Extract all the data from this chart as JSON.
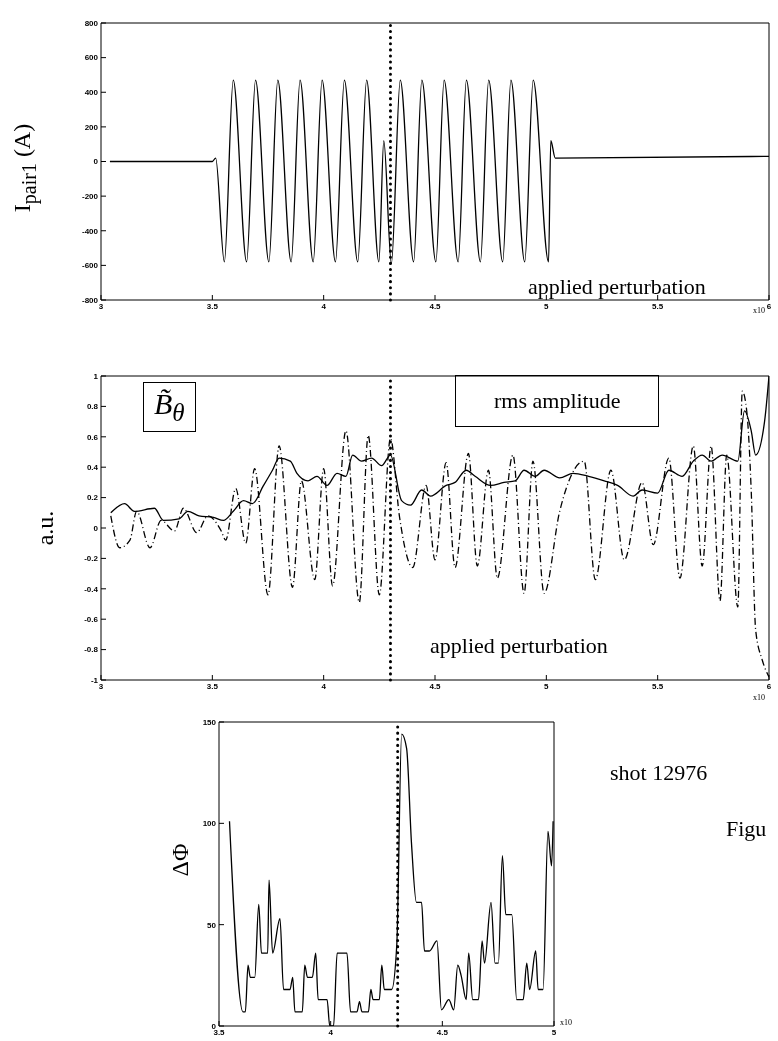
{
  "chart_data": [
    {
      "type": "line",
      "ylabel": "I$_{pair1}$ (A)",
      "annotations": [
        "applied perturbation",
        "x10"
      ],
      "xlim": [
        3,
        6
      ],
      "xticks": [
        3,
        3.5,
        4,
        4.5,
        5,
        5.5,
        6
      ],
      "ylim": [
        -800,
        800
      ],
      "yticks": [
        -800,
        -600,
        -400,
        -200,
        0,
        200,
        400,
        600,
        800
      ],
      "grid": false,
      "marker": "none",
      "line_style": "solid",
      "ref_lines": [
        {
          "axis": "x",
          "value": 4.3,
          "line_style": "dotted"
        }
      ],
      "series": [
        {
          "color": "#000000",
          "x": [
            3.04,
            3.5,
            3.515,
            3.554,
            3.594,
            3.654,
            3.694,
            3.754,
            3.794,
            3.854,
            3.894,
            3.953,
            3.993,
            4.053,
            4.093,
            4.153,
            4.193,
            4.248,
            4.27,
            4.304,
            4.344,
            4.404,
            4.441,
            4.504,
            4.541,
            4.604,
            4.641,
            4.704,
            4.741,
            4.804,
            4.841,
            4.903,
            4.941,
            5.01,
            5.02,
            5.04,
            6.0
          ],
          "values": [
            0,
            0,
            20,
            -580,
            470,
            -580,
            470,
            -580,
            470,
            -580,
            470,
            -580,
            470,
            -580,
            470,
            -580,
            470,
            -580,
            120,
            -590,
            470,
            -580,
            470,
            -580,
            470,
            -580,
            470,
            -580,
            470,
            -580,
            470,
            -580,
            470,
            -580,
            120,
            20,
            30
          ]
        }
      ]
    },
    {
      "type": "line",
      "ylabel": "a.u.",
      "annotations": [
        "B̃$_{θ}$",
        "applied perturbation",
        "x10"
      ],
      "xlim": [
        3,
        6
      ],
      "xticks": [
        3,
        3.5,
        4,
        4.5,
        5,
        5.5,
        6
      ],
      "ylim": [
        -1,
        1
      ],
      "yticks": [
        -1,
        -0.8,
        -0.6,
        -0.4,
        -0.2,
        0,
        0.2,
        0.4,
        0.6,
        0.8,
        1
      ],
      "grid": false,
      "marker": "none",
      "ref_lines": [
        {
          "axis": "x",
          "value": 4.3,
          "line_style": "dotted"
        }
      ],
      "series": [
        {
          "name": "rms amplitude",
          "color": "#000000",
          "line_style": "solid",
          "x": [
            3.044,
            3.106,
            3.15,
            3.24,
            3.28,
            3.35,
            3.39,
            3.44,
            3.505,
            3.55,
            3.594,
            3.64,
            3.68,
            3.73,
            3.77,
            3.8,
            3.85,
            3.88,
            3.93,
            3.97,
            4.015,
            4.06,
            4.1,
            4.13,
            4.17,
            4.215,
            4.26,
            4.3,
            4.35,
            4.39,
            4.44,
            4.48,
            4.55,
            4.59,
            4.64,
            4.68,
            4.75,
            4.81,
            4.86,
            4.9,
            4.95,
            4.99,
            5.06,
            5.12,
            5.19,
            5.26,
            5.32,
            5.39,
            5.43,
            5.5,
            5.55,
            5.61,
            5.66,
            5.7,
            5.74,
            5.79,
            5.86,
            5.89,
            5.92,
            5.94,
            5.98,
            6.0
          ],
          "values": [
            0.1,
            0.16,
            0.11,
            0.13,
            0.05,
            0.06,
            0.11,
            0.08,
            0.07,
            0.05,
            0.11,
            0.18,
            0.16,
            0.28,
            0.38,
            0.46,
            0.44,
            0.36,
            0.31,
            0.34,
            0.28,
            0.36,
            0.34,
            0.48,
            0.44,
            0.46,
            0.41,
            0.48,
            0.18,
            0.15,
            0.25,
            0.21,
            0.28,
            0.3,
            0.38,
            0.34,
            0.28,
            0.3,
            0.31,
            0.38,
            0.34,
            0.38,
            0.33,
            0.36,
            0.34,
            0.31,
            0.28,
            0.21,
            0.25,
            0.23,
            0.38,
            0.34,
            0.44,
            0.48,
            0.44,
            0.48,
            0.44,
            0.77,
            0.64,
            0.48,
            0.7,
            1.0
          ]
        },
        {
          "color": "#000000",
          "line_style": "dashed",
          "x": [
            3.044,
            3.084,
            3.13,
            3.16,
            3.22,
            3.27,
            3.33,
            3.37,
            3.43,
            3.48,
            3.54,
            3.56,
            3.605,
            3.65,
            3.69,
            3.75,
            3.8,
            3.86,
            3.9,
            3.96,
            4.0,
            4.04,
            4.1,
            4.16,
            4.2,
            4.25,
            4.3,
            4.34,
            4.4,
            4.46,
            4.5,
            4.55,
            4.59,
            4.65,
            4.69,
            4.74,
            4.78,
            4.85,
            4.9,
            4.94,
            4.99,
            5.06,
            5.17,
            5.22,
            5.29,
            5.35,
            5.43,
            5.48,
            5.55,
            5.6,
            5.66,
            5.7,
            5.74,
            5.78,
            5.81,
            5.86,
            5.88,
            5.9,
            5.92,
            5.94,
            5.97,
            6.0
          ],
          "values": [
            0.08,
            -0.13,
            -0.08,
            0.11,
            -0.13,
            0.05,
            -0.02,
            0.13,
            -0.03,
            0.08,
            -0.02,
            -0.08,
            0.26,
            -0.1,
            0.39,
            -0.44,
            0.54,
            -0.39,
            0.31,
            -0.34,
            0.39,
            -0.38,
            0.64,
            -0.49,
            0.61,
            -0.44,
            0.59,
            0.08,
            -0.26,
            0.28,
            -0.21,
            0.43,
            -0.26,
            0.49,
            -0.25,
            0.38,
            -0.33,
            0.48,
            -0.43,
            0.44,
            -0.43,
            0.11,
            0.44,
            -0.34,
            0.38,
            -0.21,
            0.3,
            -0.11,
            0.46,
            -0.33,
            0.54,
            -0.25,
            0.54,
            -0.48,
            0.48,
            -0.52,
            0.9,
            0.77,
            0.25,
            -0.67,
            -0.87,
            -0.98
          ]
        }
      ]
    },
    {
      "type": "line",
      "ylabel": "ΔΦ",
      "annotations": [
        "x10",
        "shot 12976",
        "Figu"
      ],
      "xlim": [
        3.5,
        5
      ],
      "xticks": [
        3.5,
        4,
        4.5,
        5
      ],
      "ylim": [
        0,
        150
      ],
      "yticks": [
        0,
        50,
        100,
        150
      ],
      "grid": false,
      "marker": "none",
      "line_style": "solid",
      "ref_lines": [
        {
          "axis": "x",
          "value": 4.3,
          "line_style": "dotted"
        }
      ],
      "series": [
        {
          "color": "#000000",
          "x": [
            3.547,
            3.607,
            3.618,
            3.63,
            3.64,
            3.66,
            3.678,
            3.69,
            3.718,
            3.724,
            3.74,
            3.773,
            3.789,
            3.818,
            3.83,
            3.84,
            3.873,
            3.884,
            3.896,
            3.918,
            3.933,
            3.944,
            3.984,
            3.996,
            4.013,
            4.029,
            4.073,
            4.089,
            4.118,
            4.129,
            4.14,
            4.169,
            4.18,
            4.19,
            4.218,
            4.229,
            4.24,
            4.273,
            4.296,
            4.318,
            4.34,
            4.362,
            4.384,
            4.407,
            4.42,
            4.442,
            4.476,
            4.496,
            4.529,
            4.551,
            4.569,
            4.584,
            4.607,
            4.618,
            4.636,
            4.662,
            4.678,
            4.689,
            4.718,
            4.736,
            4.751,
            4.769,
            4.784,
            4.811,
            4.833,
            4.862,
            4.878,
            4.891,
            4.918,
            4.929,
            4.951,
            4.973,
            4.989,
            4.996
          ],
          "values": [
            101,
            7,
            7,
            30,
            24,
            24,
            60,
            36,
            36,
            72,
            36,
            53,
            18,
            18,
            24,
            7,
            7,
            30,
            24,
            24,
            36,
            13,
            13,
            0,
            0,
            36,
            36,
            7,
            7,
            12,
            7,
            7,
            18,
            13,
            13,
            30,
            18,
            18,
            40,
            144,
            137,
            90,
            61,
            61,
            37,
            37,
            42,
            8,
            13,
            8,
            30,
            25,
            13,
            36,
            13,
            13,
            42,
            31,
            61,
            31,
            31,
            84,
            55,
            55,
            13,
            13,
            31,
            18,
            37,
            18,
            18,
            96,
            79,
            101
          ]
        }
      ]
    }
  ]
}
